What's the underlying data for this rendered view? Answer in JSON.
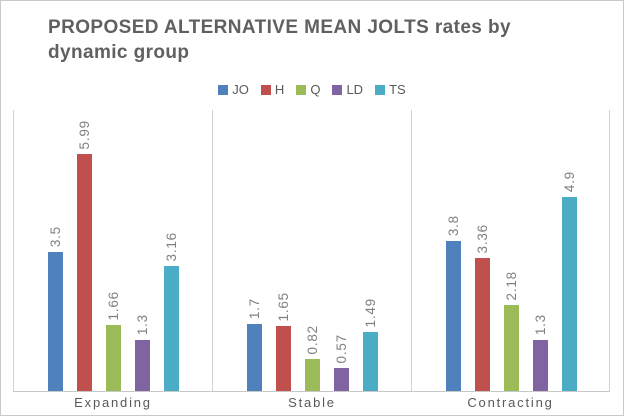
{
  "header": {
    "title_line1": "PROPOSED ALTERNATIVE MEAN JOLTS rates by",
    "title_line2": "dynamic group"
  },
  "colors": {
    "title_text": "#606060",
    "legend_text": "#595959",
    "value_label_text": "#808080",
    "category_label_text": "#595959",
    "panel_gridline": "#d2d2d2",
    "x_axis_line": "#c8c8c8",
    "chart_border": "#c9c9c9",
    "background": "#ffffff"
  },
  "chart_data": {
    "type": "bar",
    "title": "PROPOSED ALTERNATIVE MEAN JOLTS rates by dynamic group",
    "categories": [
      "Expanding",
      "Stable",
      "Contracting"
    ],
    "series": [
      {
        "name": "JO",
        "color": "#4f81bd",
        "values": [
          3.5,
          1.7,
          3.8
        ]
      },
      {
        "name": "H",
        "color": "#c0504d",
        "values": [
          5.99,
          1.65,
          3.36
        ]
      },
      {
        "name": "Q",
        "color": "#9bbb59",
        "values": [
          1.66,
          0.82,
          2.18
        ]
      },
      {
        "name": "LD",
        "color": "#8064a2",
        "values": [
          1.3,
          0.57,
          1.3
        ]
      },
      {
        "name": "TS",
        "color": "#4bacc6",
        "values": [
          3.16,
          1.49,
          4.9
        ]
      }
    ],
    "xlabel": "",
    "ylabel": "",
    "ylim": [
      0,
      7.1
    ],
    "legend_position": "top",
    "value_labels_visible": true,
    "value_label_rotation_deg": -90,
    "grid": "vertical panel separators only, no horizontal gridlines, no y-axis tick labels"
  }
}
